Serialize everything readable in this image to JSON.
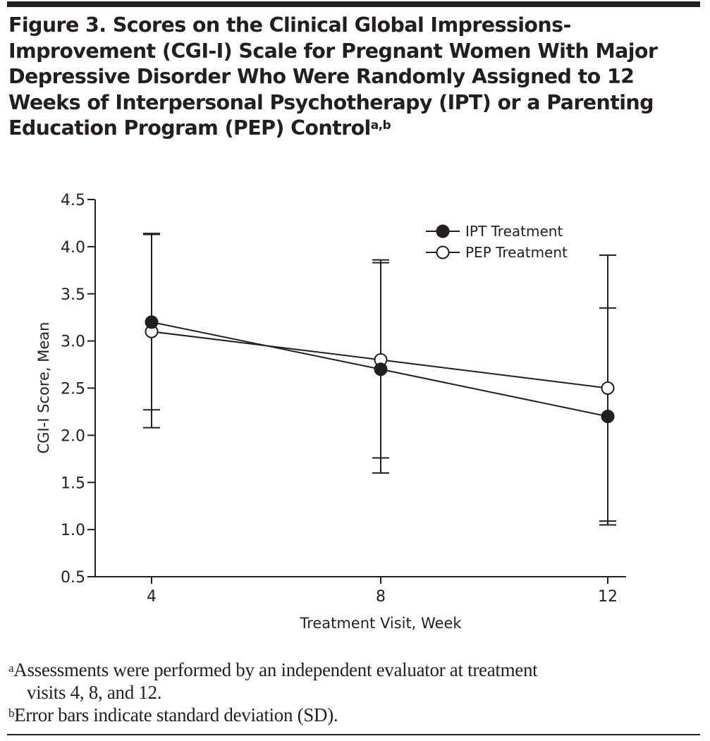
{
  "figure": {
    "title": "Figure 3. Scores on the Clinical Global Impressions-Improvement (CGI-I) Scale for Pregnant Women With Major Depressive Disorder Who Were Randomly Assigned to 12 Weeks of Interpersonal Psychotherapy (IPT) or a Parenting Education Program (PEP) Control",
    "title_lines": [
      "Figure 3. Scores on the Clinical Global Impressions-",
      "Improvement (CGI-I) Scale for Pregnant Women With Major",
      "Depressive Disorder Who Were Randomly Assigned to 12",
      "Weeks of Interpersonal Psychotherapy (IPT) or a Parenting",
      "Education Program (PEP) Control"
    ],
    "title_superscript": "a,b",
    "footnotes": [
      {
        "marker": "a",
        "text": "Assessments were performed by an independent evaluator at treatment",
        "continuation": "visits 4, 8, and 12."
      },
      {
        "marker": "b",
        "text": "Error bars indicate standard deviation (SD)."
      }
    ]
  },
  "chart_data": {
    "type": "line",
    "title": "Figure 3. Scores on the Clinical Global Impressions-Improvement (CGI-I) Scale",
    "xlabel": "Treatment Visit, Week",
    "ylabel": "CGI-I Score, Mean",
    "x": [
      4,
      8,
      12
    ],
    "x_tick_labels": [
      "4",
      "8",
      "12"
    ],
    "ylim": [
      0.5,
      4.5
    ],
    "y_ticks": [
      0.5,
      1.0,
      1.5,
      2.0,
      2.5,
      3.0,
      3.5,
      4.0,
      4.5
    ],
    "y_tick_labels": [
      "0.5",
      "1.0",
      "1.5",
      "2.0",
      "2.5",
      "3.0",
      "3.5",
      "4.0",
      "4.5"
    ],
    "grid": false,
    "legend_position": "top-right",
    "series": [
      {
        "name": "IPT Treatment",
        "marker": "filled-circle",
        "values": [
          3.2,
          2.7,
          2.2
        ],
        "error_lower": [
          2.27,
          1.6,
          1.05
        ],
        "error_upper": [
          4.13,
          3.83,
          3.35
        ]
      },
      {
        "name": "PEP Treatment",
        "marker": "open-circle",
        "values": [
          3.1,
          2.8,
          2.5
        ],
        "error_lower": [
          2.08,
          1.76,
          1.09
        ],
        "error_upper": [
          4.14,
          3.86,
          3.91
        ]
      }
    ]
  }
}
